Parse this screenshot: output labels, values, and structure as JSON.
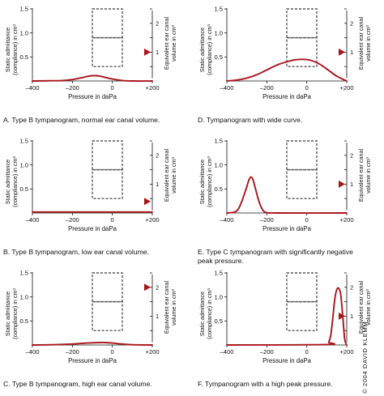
{
  "copyright": "© 2004 DAVID KLEMM",
  "colors": {
    "curve": "#a8151b",
    "marker": "#a8151b",
    "axis": "#111111",
    "box": "#555555"
  },
  "chart_data": [
    {
      "type": "line",
      "caption": "A. Type B tympanogram, normal ear canal volume.",
      "xlabel": "Pressure in daPa",
      "ylabel": "Static admittance (compliance) in cm³",
      "y2label": "Equivalent ear canal volume in cm³",
      "xlim": [
        -400,
        200
      ],
      "ylim": [
        0,
        1.5
      ],
      "y2lim": [
        0,
        2.5
      ],
      "xticks": [
        "–400",
        "–200",
        "0",
        "+200"
      ],
      "yticks": [
        "0.5",
        "1.0",
        "1.5"
      ],
      "y2ticks": [
        "1",
        "2"
      ],
      "ear_canal_volume": 1.0,
      "normal_region": {
        "pressure": [
          -100,
          50
        ],
        "admittance": [
          0.3,
          1.5
        ]
      },
      "series": [
        {
          "x": [
            -400,
            -300,
            -250,
            -200,
            -150,
            -120,
            -100,
            -80,
            -60,
            -40,
            0,
            50,
            100,
            200
          ],
          "y": [
            0,
            0.005,
            0.01,
            0.03,
            0.07,
            0.1,
            0.11,
            0.11,
            0.1,
            0.08,
            0.04,
            0.01,
            0.0,
            0
          ]
        }
      ]
    },
    {
      "type": "line",
      "caption": "D. Tympanogram with wide curve.",
      "xlabel": "Pressure in daPa",
      "ylabel": "Static admittance (compliance) in cm³",
      "y2label": "Equivalent ear canal volume in cm³",
      "xlim": [
        -400,
        200
      ],
      "ylim": [
        0,
        1.5
      ],
      "y2lim": [
        0,
        2.5
      ],
      "xticks": [
        "–400",
        "–200",
        "0",
        "+200"
      ],
      "yticks": [
        "0.5",
        "1.0",
        "1.5"
      ],
      "y2ticks": [
        "1",
        "2"
      ],
      "ear_canal_volume": 1.0,
      "normal_region": {
        "pressure": [
          -100,
          50
        ],
        "admittance": [
          0.3,
          1.5
        ]
      },
      "series": [
        {
          "x": [
            -400,
            -350,
            -300,
            -250,
            -200,
            -150,
            -100,
            -60,
            -20,
            20,
            60,
            100,
            150,
            200
          ],
          "y": [
            0,
            0.02,
            0.06,
            0.13,
            0.23,
            0.33,
            0.4,
            0.44,
            0.45,
            0.43,
            0.36,
            0.25,
            0.1,
            0
          ]
        }
      ]
    },
    {
      "type": "line",
      "caption": "B. Type B tympanogram, low ear canal volume.",
      "xlabel": "Pressure in daPa",
      "ylabel": "Static admittance (compliance) in cm³",
      "y2label": "Equivalent ear canal volume in cm³",
      "xlim": [
        -400,
        200
      ],
      "ylim": [
        0,
        1.5
      ],
      "y2lim": [
        0,
        2.5
      ],
      "xticks": [
        "–400",
        "–200",
        "0",
        "+200"
      ],
      "yticks": [
        "0.5",
        "1.0",
        "1.5"
      ],
      "y2ticks": [
        "1",
        "2"
      ],
      "ear_canal_volume": 0.4,
      "normal_region": {
        "pressure": [
          -100,
          50
        ],
        "admittance": [
          0.3,
          1.5
        ]
      },
      "series": [
        {
          "x": [
            -400,
            200
          ],
          "y": [
            0.02,
            0.02
          ]
        }
      ]
    },
    {
      "type": "line",
      "caption": "E. Type C tympanogram with significantly negative peak pressure.",
      "xlabel": "Pressure in daPa",
      "ylabel": "Static admittance (compliance) in cm³",
      "y2label": "Equivalent ear canal volume in cm³",
      "xlim": [
        -400,
        200
      ],
      "ylim": [
        0,
        1.5
      ],
      "y2lim": [
        0,
        2.5
      ],
      "xticks": [
        "–400",
        "–200",
        "0",
        "+200"
      ],
      "yticks": [
        "0.5",
        "1.0",
        "1.5"
      ],
      "y2ticks": [
        "1",
        "2"
      ],
      "ear_canal_volume": 1.0,
      "normal_region": {
        "pressure": [
          -100,
          50
        ],
        "admittance": [
          0.3,
          1.5
        ]
      },
      "series": [
        {
          "x": [
            -400,
            -360,
            -340,
            -320,
            -300,
            -290,
            -280,
            -270,
            -260,
            -240,
            -220,
            -200,
            -150,
            200
          ],
          "y": [
            0,
            0.02,
            0.1,
            0.3,
            0.55,
            0.68,
            0.75,
            0.7,
            0.56,
            0.25,
            0.06,
            0.01,
            0,
            0
          ]
        }
      ]
    },
    {
      "type": "line",
      "caption": "C. Type B tympanogram, high ear canal volume.",
      "xlabel": "Pressure in daPa",
      "ylabel": "Static admittance (compliance) in cm³",
      "y2label": "Equivalent ear canal volume in cm³",
      "xlim": [
        -400,
        200
      ],
      "ylim": [
        0,
        1.5
      ],
      "y2lim": [
        0,
        2.5
      ],
      "xticks": [
        "–400",
        "–200",
        "0",
        "+200"
      ],
      "yticks": [
        "0.5",
        "1.0",
        "1.5"
      ],
      "y2ticks": [
        "1",
        "2"
      ],
      "ear_canal_volume": 2.0,
      "normal_region": {
        "pressure": [
          -100,
          50
        ],
        "admittance": [
          0.3,
          1.5
        ]
      },
      "series": [
        {
          "x": [
            -400,
            -300,
            -200,
            -150,
            -100,
            -60,
            -40,
            0,
            50,
            100,
            200
          ],
          "y": [
            0,
            0.005,
            0.02,
            0.035,
            0.045,
            0.05,
            0.05,
            0.04,
            0.02,
            0.005,
            0
          ]
        }
      ]
    },
    {
      "type": "line",
      "caption": "F. Tympanogram with a high peak pressure.",
      "xlabel": "Pressure in daPa",
      "ylabel": "Static admittance (compliance) in cm³",
      "y2label": "Equivalent ear canal volume in cm³",
      "xlim": [
        -400,
        200
      ],
      "ylim": [
        0,
        1.5
      ],
      "y2lim": [
        0,
        2.5
      ],
      "xticks": [
        "–400",
        "–200",
        "0",
        "+200"
      ],
      "yticks": [
        "0.5",
        "1.0",
        "1.5"
      ],
      "y2ticks": [
        "1",
        "2"
      ],
      "ear_canal_volume": 1.0,
      "normal_region": {
        "pressure": [
          -100,
          50
        ],
        "admittance": [
          0.3,
          1.5
        ]
      },
      "series": [
        {
          "x": [
            -400,
            100,
            110,
            120,
            130,
            140,
            150,
            160,
            170,
            180,
            190,
            200
          ],
          "y": [
            0,
            0.01,
            0.06,
            0.2,
            0.55,
            0.95,
            1.15,
            1.18,
            1.05,
            0.6,
            0.12,
            0
          ]
        }
      ]
    }
  ]
}
